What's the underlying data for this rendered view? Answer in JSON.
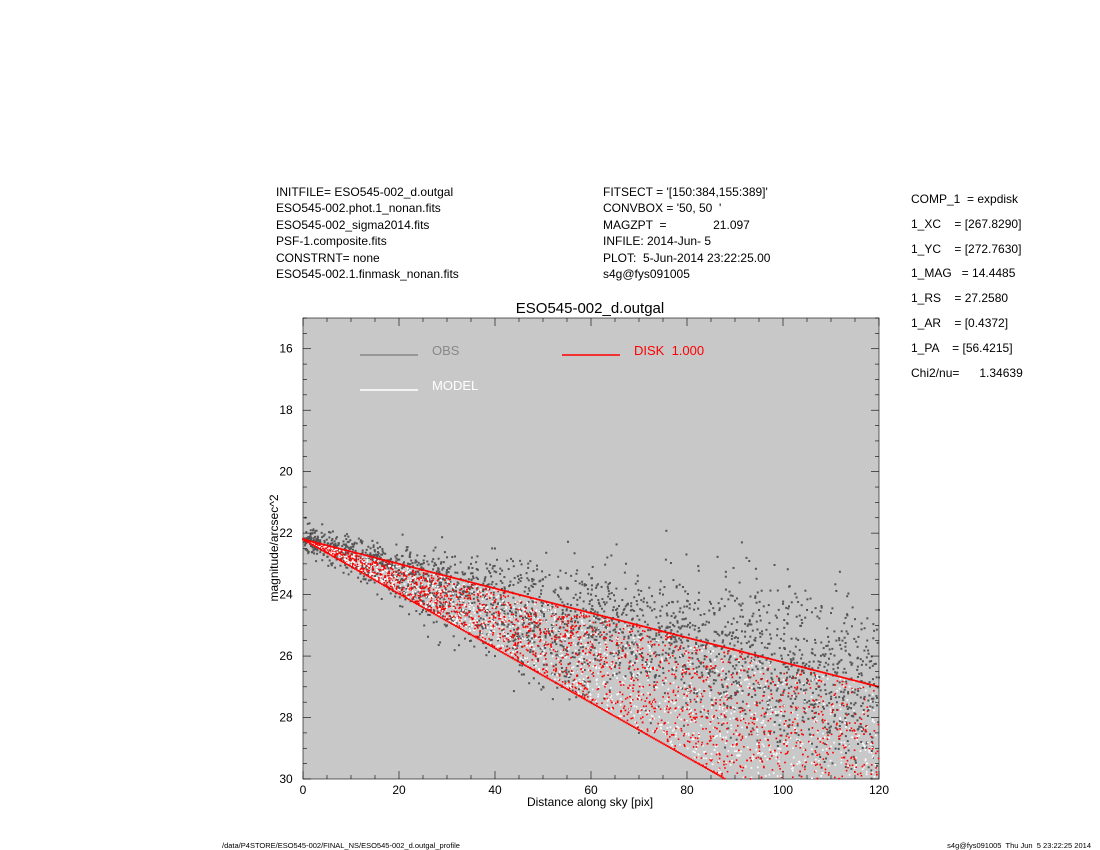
{
  "header": {
    "left": [
      "INITFILE= ESO545-002_d.outgal",
      "ESO545-002.phot.1_nonan.fits",
      "ESO545-002_sigma2014.fits",
      "PSF-1.composite.fits",
      "CONSTRNT= none",
      "ESO545-002.1.finmask_nonan.fits"
    ],
    "middle": [
      "FITSECT = '[150:384,155:389]'",
      "CONVBOX = '50, 50  '",
      "MAGZPT  =              21.097",
      "INFILE: 2014-Jun- 5",
      "PLOT:  5-Jun-2014 23:22:25.00",
      "s4g@fys091005"
    ]
  },
  "params": [
    "COMP_1  = expdisk",
    "1_XC    = [267.8290]",
    "1_YC    = [272.7630]",
    "1_MAG   = 14.4485",
    "1_RS    = 27.2580",
    "1_AR    = [0.4372]",
    "1_PA    = [56.4215]",
    "",
    "Chi2/nu=      1.34639"
  ],
  "footer": {
    "left": "/data/P4STORE/ESO545-002/FINAL_NS/ESO545-002_d.outgal_profile",
    "right": "s4g@fys091005  Thu Jun  5 23:22:25 2014"
  },
  "colors": {
    "plot_bg": "#c8c8c8",
    "obs": "#555555",
    "obs_legend": "#888888",
    "model": "#ffffff",
    "disk": "#ff0000"
  },
  "chart_data": {
    "type": "scatter",
    "title": "ESO545-002_d.outgal",
    "xlabel": "Distance along sky [pix]",
    "ylabel": "magnitude/arcsec^2",
    "xlim": [
      0,
      120
    ],
    "ylim": [
      30,
      15
    ],
    "y_inverted": true,
    "xticks": [
      0,
      20,
      40,
      60,
      80,
      100,
      120
    ],
    "yticks": [
      16,
      18,
      20,
      22,
      24,
      26,
      28,
      30
    ],
    "grid": false,
    "legend": [
      {
        "name": "OBS",
        "color": "#888888"
      },
      {
        "name": "MODEL",
        "color": "#ffffff"
      },
      {
        "name": "DISK  1.000",
        "color": "#ff0000"
      }
    ],
    "legend_placement": "top",
    "series": [
      {
        "name": "OBS",
        "description_points": "scatter cloud, central value ~22.2 at x=0 spreading to ~24 (upper) and ~30 (lower) by x=85-120",
        "sample_points": [
          [
            0.5,
            21.5
          ],
          [
            1,
            21.7
          ],
          [
            2,
            22.0
          ],
          [
            3,
            22.2
          ],
          [
            5,
            22.4
          ],
          [
            10,
            22.5
          ],
          [
            10,
            23.0
          ],
          [
            15,
            22.8
          ],
          [
            15,
            23.4
          ],
          [
            20,
            23.2
          ],
          [
            20,
            23.8
          ],
          [
            25,
            23.2
          ],
          [
            25,
            24.5
          ],
          [
            30,
            23.2
          ],
          [
            30,
            25.0
          ],
          [
            35,
            23.0
          ],
          [
            35,
            25.5
          ],
          [
            40,
            22.5
          ],
          [
            40,
            26.0
          ],
          [
            45,
            23.5
          ],
          [
            45,
            26.5
          ],
          [
            50,
            23.5
          ],
          [
            50,
            27.0
          ],
          [
            55,
            23.8
          ],
          [
            60,
            24.0
          ],
          [
            60,
            27.5
          ],
          [
            65,
            24.2
          ],
          [
            70,
            24.0
          ],
          [
            70,
            28.5
          ],
          [
            75,
            24.0
          ],
          [
            80,
            24.2
          ],
          [
            85,
            24.3
          ],
          [
            90,
            24.2
          ],
          [
            95,
            24.5
          ],
          [
            100,
            24.3
          ],
          [
            105,
            24.5
          ],
          [
            110,
            24.6
          ],
          [
            115,
            24.8
          ],
          [
            120,
            24.5
          ]
        ]
      },
      {
        "name": "DISK  1.000",
        "upper_envelope": [
          [
            0,
            22.2
          ],
          [
            120,
            27.0
          ]
        ],
        "lower_envelope": [
          [
            0,
            22.2
          ],
          [
            88,
            30.0
          ]
        ]
      }
    ]
  }
}
